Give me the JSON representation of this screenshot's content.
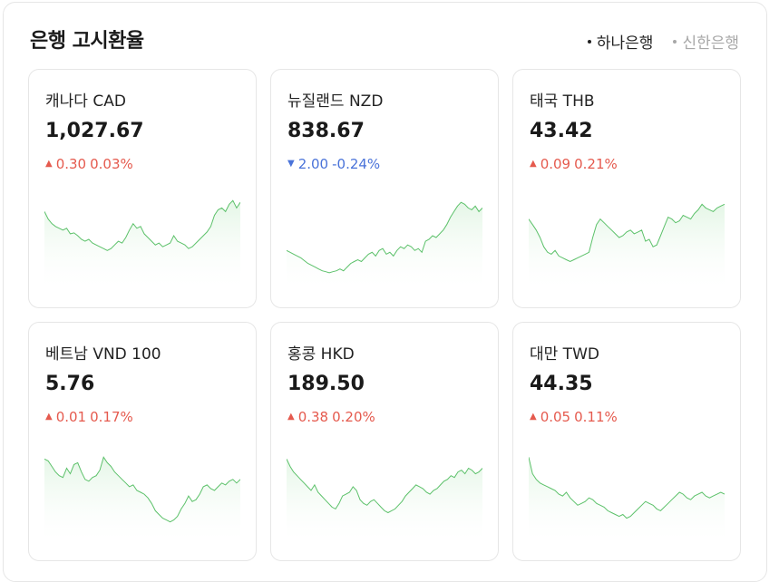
{
  "header": {
    "title": "은행 고시환율",
    "banks": [
      {
        "label": "하나은행",
        "active": true
      },
      {
        "label": "신한은행",
        "active": false
      }
    ]
  },
  "colors": {
    "up": "#e55a4e",
    "down": "#4a73d9",
    "sparkline": "#5cc16a",
    "sparkline_fill": "#e4f6e6"
  },
  "cards": [
    {
      "name": "캐나다 CAD",
      "value": "1,027.67",
      "direction": "up",
      "change": "0.30",
      "percent": "0.03%",
      "trend": [
        78,
        70,
        65,
        62,
        60,
        58,
        60,
        54,
        55,
        52,
        48,
        46,
        48,
        44,
        42,
        40,
        38,
        36,
        38,
        42,
        46,
        44,
        50,
        58,
        65,
        60,
        62,
        54,
        50,
        46,
        42,
        44,
        40,
        42,
        44,
        52,
        46,
        44,
        42,
        38,
        40,
        44,
        48,
        52,
        56,
        62,
        74,
        80,
        82,
        78,
        86,
        90,
        82,
        88
      ]
    },
    {
      "name": "뉴질랜드 NZD",
      "value": "838.67",
      "direction": "down",
      "change": "2.00",
      "percent": "-0.24%",
      "trend": [
        36,
        34,
        32,
        30,
        28,
        25,
        22,
        20,
        18,
        16,
        14,
        13,
        12,
        13,
        14,
        16,
        14,
        18,
        22,
        24,
        26,
        24,
        28,
        32,
        34,
        30,
        36,
        38,
        32,
        34,
        30,
        36,
        40,
        38,
        42,
        40,
        36,
        38,
        34,
        46,
        48,
        52,
        50,
        54,
        58,
        64,
        72,
        78,
        84,
        88,
        86,
        82,
        80,
        84,
        78,
        82
      ]
    },
    {
      "name": "태국 THB",
      "value": "43.42",
      "direction": "up",
      "change": "0.09",
      "percent": "0.21%",
      "trend": [
        70,
        64,
        58,
        50,
        40,
        34,
        32,
        36,
        30,
        28,
        26,
        24,
        26,
        28,
        30,
        32,
        34,
        50,
        64,
        70,
        66,
        62,
        58,
        54,
        50,
        52,
        56,
        58,
        54,
        56,
        58,
        46,
        48,
        40,
        42,
        52,
        62,
        72,
        70,
        66,
        68,
        74,
        72,
        70,
        76,
        80,
        86,
        82,
        80,
        78,
        82,
        84,
        86
      ]
    },
    {
      "name": "베트남 VND 100",
      "value": "5.76",
      "direction": "up",
      "change": "0.01",
      "percent": "0.17%",
      "trend": [
        84,
        82,
        76,
        70,
        66,
        64,
        74,
        68,
        78,
        80,
        70,
        62,
        60,
        64,
        66,
        72,
        86,
        80,
        76,
        70,
        66,
        62,
        58,
        54,
        56,
        50,
        48,
        46,
        42,
        36,
        28,
        24,
        20,
        18,
        16,
        18,
        22,
        30,
        36,
        44,
        38,
        40,
        46,
        54,
        56,
        52,
        50,
        54,
        58,
        56,
        60,
        62,
        58,
        62
      ]
    },
    {
      "name": "홍콩 HKD",
      "value": "189.50",
      "direction": "up",
      "change": "0.38",
      "percent": "0.20%",
      "trend": [
        84,
        76,
        70,
        66,
        62,
        58,
        54,
        50,
        56,
        48,
        44,
        40,
        36,
        32,
        30,
        36,
        44,
        46,
        48,
        54,
        50,
        40,
        36,
        34,
        38,
        40,
        36,
        32,
        28,
        26,
        28,
        30,
        34,
        38,
        44,
        48,
        52,
        56,
        54,
        52,
        48,
        46,
        50,
        52,
        56,
        60,
        62,
        66,
        64,
        70,
        72,
        68,
        74,
        72,
        68,
        70,
        74
      ]
    },
    {
      "name": "대만 TWD",
      "value": "44.35",
      "direction": "up",
      "change": "0.05",
      "percent": "0.11%",
      "trend": [
        86,
        68,
        62,
        58,
        56,
        54,
        52,
        50,
        46,
        44,
        48,
        42,
        38,
        34,
        36,
        38,
        42,
        40,
        36,
        34,
        32,
        28,
        26,
        24,
        22,
        24,
        20,
        22,
        26,
        30,
        34,
        38,
        36,
        34,
        30,
        28,
        32,
        36,
        40,
        44,
        48,
        46,
        42,
        40,
        44,
        46,
        48,
        44,
        42,
        44,
        46,
        48,
        46
      ]
    }
  ]
}
